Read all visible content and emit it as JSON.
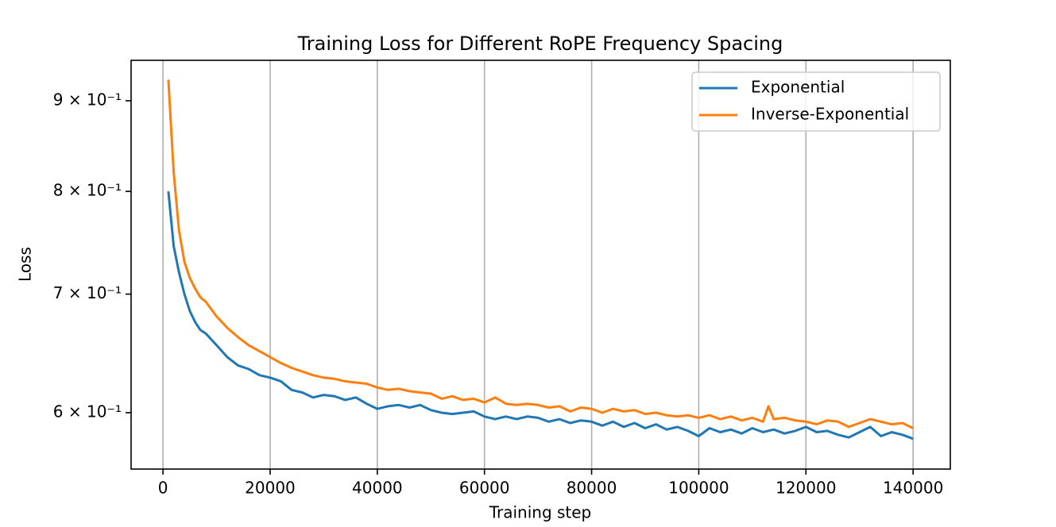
{
  "chart_data": {
    "type": "line",
    "title": "Training Loss for Different RoPE Frequency Spacing",
    "x_label": "Training step",
    "y_label": "Loss",
    "log_y": true,
    "grid": "x",
    "legend": "upper right",
    "xlim": [
      -5950,
      146950
    ],
    "ylim": [
      0.5576,
      0.9486
    ],
    "xticks": [
      0,
      20000,
      40000,
      60000,
      80000,
      100000,
      120000,
      140000
    ],
    "yticks": [
      {
        "value": 0.6,
        "label": "6 × 10⁻¹"
      },
      {
        "value": 0.7,
        "label": "7 × 10⁻¹"
      },
      {
        "value": 0.8,
        "label": "8 × 10⁻¹"
      },
      {
        "value": 0.9,
        "label": "9 × 10⁻¹"
      }
    ],
    "series": [
      {
        "name": "Exponential",
        "color": "#1f77b4",
        "x": [
          1000,
          2000,
          3000,
          4000,
          5000,
          6000,
          7000,
          8000,
          10000,
          12000,
          14000,
          16000,
          18000,
          20000,
          22000,
          24000,
          26000,
          28000,
          30000,
          32000,
          34000,
          36000,
          38000,
          40000,
          42000,
          44000,
          46000,
          48000,
          50000,
          52000,
          54000,
          56000,
          58000,
          60000,
          62000,
          64000,
          66000,
          68000,
          70000,
          72000,
          74000,
          76000,
          78000,
          80000,
          82000,
          84000,
          86000,
          88000,
          90000,
          92000,
          94000,
          96000,
          98000,
          100000,
          102000,
          104000,
          106000,
          108000,
          110000,
          112000,
          114000,
          116000,
          118000,
          120000,
          122000,
          124000,
          126000,
          128000,
          130000,
          132000,
          134000,
          136000,
          138000,
          140000
        ],
        "values": [
          0.8,
          0.745,
          0.72,
          0.7,
          0.685,
          0.675,
          0.668,
          0.665,
          0.655,
          0.645,
          0.638,
          0.635,
          0.63,
          0.628,
          0.625,
          0.618,
          0.616,
          0.612,
          0.614,
          0.613,
          0.61,
          0.612,
          0.607,
          0.603,
          0.605,
          0.606,
          0.604,
          0.606,
          0.602,
          0.6,
          0.599,
          0.6,
          0.601,
          0.597,
          0.595,
          0.597,
          0.595,
          0.597,
          0.596,
          0.593,
          0.595,
          0.592,
          0.594,
          0.593,
          0.59,
          0.593,
          0.589,
          0.592,
          0.588,
          0.591,
          0.587,
          0.589,
          0.586,
          0.582,
          0.588,
          0.585,
          0.587,
          0.584,
          0.588,
          0.585,
          0.587,
          0.584,
          0.586,
          0.589,
          0.585,
          0.586,
          0.583,
          0.581,
          0.585,
          0.589,
          0.582,
          0.585,
          0.583,
          0.58
        ]
      },
      {
        "name": "Inverse-Exponential",
        "color": "#ff7f0e",
        "x": [
          1000,
          2000,
          3000,
          4000,
          5000,
          6000,
          7000,
          8000,
          10000,
          12000,
          14000,
          16000,
          18000,
          20000,
          22000,
          24000,
          26000,
          28000,
          30000,
          32000,
          34000,
          36000,
          38000,
          40000,
          42000,
          44000,
          46000,
          48000,
          50000,
          52000,
          54000,
          56000,
          58000,
          60000,
          62000,
          64000,
          66000,
          68000,
          70000,
          72000,
          74000,
          76000,
          78000,
          80000,
          82000,
          84000,
          86000,
          88000,
          90000,
          92000,
          94000,
          96000,
          98000,
          100000,
          102000,
          104000,
          106000,
          108000,
          110000,
          112000,
          113000,
          114000,
          116000,
          118000,
          120000,
          122000,
          124000,
          126000,
          128000,
          130000,
          132000,
          134000,
          136000,
          138000,
          140000
        ],
        "values": [
          0.925,
          0.82,
          0.76,
          0.73,
          0.715,
          0.705,
          0.697,
          0.693,
          0.68,
          0.67,
          0.662,
          0.655,
          0.65,
          0.645,
          0.64,
          0.636,
          0.633,
          0.63,
          0.628,
          0.627,
          0.625,
          0.624,
          0.623,
          0.62,
          0.618,
          0.619,
          0.617,
          0.616,
          0.615,
          0.611,
          0.613,
          0.61,
          0.611,
          0.608,
          0.612,
          0.607,
          0.606,
          0.607,
          0.606,
          0.604,
          0.605,
          0.601,
          0.604,
          0.603,
          0.6,
          0.603,
          0.601,
          0.602,
          0.599,
          0.6,
          0.598,
          0.597,
          0.598,
          0.596,
          0.598,
          0.595,
          0.597,
          0.594,
          0.596,
          0.593,
          0.605,
          0.595,
          0.596,
          0.594,
          0.593,
          0.591,
          0.594,
          0.593,
          0.589,
          0.592,
          0.595,
          0.593,
          0.591,
          0.592,
          0.588
        ]
      }
    ]
  }
}
